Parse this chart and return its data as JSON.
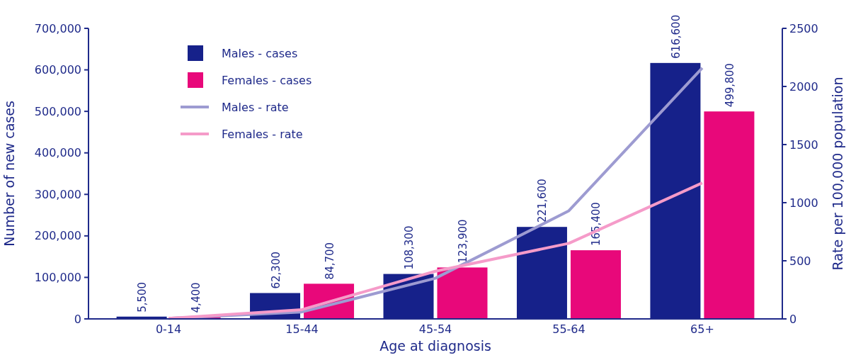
{
  "chart_data": {
    "type": "bar",
    "xlabel": "Age at diagnosis",
    "ylabel": "Number of new cases",
    "y2label": "Rate per 100,000 population",
    "categories": [
      "0-14",
      "15-44",
      "45-54",
      "55-64",
      "65+"
    ],
    "series": [
      {
        "name": "Males - cases",
        "color": "#16218a",
        "values": [
          5500,
          62300,
          108300,
          221600,
          616600
        ],
        "value_labels": [
          "5,500",
          "62,300",
          "108,300",
          "221,600",
          "616,600"
        ]
      },
      {
        "name": "Females - cases",
        "color": "#e8087a",
        "values": [
          4400,
          84700,
          123900,
          165400,
          499800
        ],
        "value_labels": [
          "4,400",
          "84,700",
          "123,900",
          "165,400",
          "499,800"
        ]
      },
      {
        "name": "Males - rate",
        "type": "line",
        "axis": "y2",
        "color": "#9d9bd1",
        "values": [
          5,
          60,
          350,
          930,
          2160
        ]
      },
      {
        "name": "Females - rate",
        "type": "line",
        "axis": "y2",
        "color": "#f59bc9",
        "values": [
          5,
          80,
          410,
          650,
          1170
        ]
      }
    ],
    "ylim": [
      0,
      700000
    ],
    "yticks": [
      {
        "value": 0,
        "label": "0"
      },
      {
        "value": 100000,
        "label": "100,000"
      },
      {
        "value": 200000,
        "label": "200,000"
      },
      {
        "value": 300000,
        "label": "300,000"
      },
      {
        "value": 400000,
        "label": "400,000"
      },
      {
        "value": 500000,
        "label": "500,000"
      },
      {
        "value": 600000,
        "label": "600,000"
      },
      {
        "value": 700000,
        "label": "700,000"
      }
    ],
    "y2lim": [
      0,
      2500
    ],
    "y2ticks": [
      0,
      500,
      1000,
      1500,
      2000,
      2500
    ],
    "legend": "top left",
    "grid": false
  }
}
